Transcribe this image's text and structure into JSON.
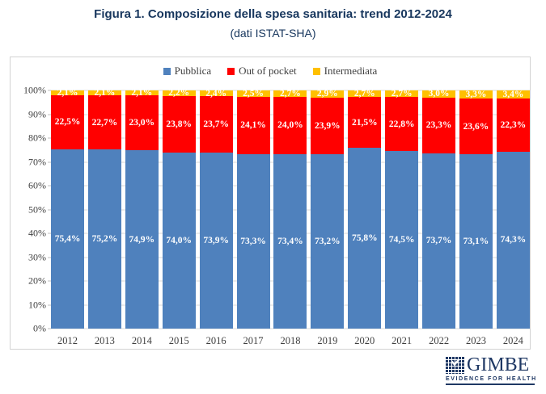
{
  "figure": {
    "title": "Figura 1. Composizione della spesa sanitaria: trend 2012-2024",
    "subtitle": "(dati ISTAT-SHA)"
  },
  "colors": {
    "pubblica": "#4F81BD",
    "out_of_pocket": "#FF0000",
    "intermediata": "#FFC000",
    "title_text": "#17365D",
    "axis_text": "#3F3F3F",
    "gridline": "#D9D9D9"
  },
  "chart_data": {
    "type": "bar",
    "stacked": true,
    "title": "Figura 1. Composizione della spesa sanitaria: trend 2012-2024",
    "subtitle": "(dati ISTAT-SHA)",
    "categories": [
      "2012",
      "2013",
      "2014",
      "2015",
      "2016",
      "2017",
      "2018",
      "2019",
      "2020",
      "2021",
      "2022",
      "2023",
      "2024"
    ],
    "series": [
      {
        "name": "Pubblica",
        "color": "#4F81BD",
        "values": [
          75.4,
          75.2,
          74.9,
          74.0,
          73.9,
          73.3,
          73.4,
          73.2,
          75.8,
          74.5,
          73.7,
          73.1,
          74.3
        ],
        "labels": [
          "75,4%",
          "75,2%",
          "74,9%",
          "74,0%",
          "73,9%",
          "73,3%",
          "73,4%",
          "73,2%",
          "75,8%",
          "74,5%",
          "73,7%",
          "73,1%",
          "74,3%"
        ]
      },
      {
        "name": "Out of pocket",
        "color": "#FF0000",
        "values": [
          22.5,
          22.7,
          23.0,
          23.8,
          23.7,
          24.1,
          24.0,
          23.9,
          21.5,
          22.8,
          23.3,
          23.6,
          22.3
        ],
        "labels": [
          "22,5%",
          "22,7%",
          "23,0%",
          "23,8%",
          "23,7%",
          "24,1%",
          "24,0%",
          "23,9%",
          "21,5%",
          "22,8%",
          "23,3%",
          "23,6%",
          "22,3%"
        ]
      },
      {
        "name": "Intermediata",
        "color": "#FFC000",
        "values": [
          2.1,
          2.1,
          2.1,
          2.2,
          2.4,
          2.5,
          2.7,
          2.9,
          2.7,
          2.7,
          3.0,
          3.3,
          3.4
        ],
        "labels": [
          "2,1%",
          "2,1%",
          "2,1%",
          "2,2%",
          "2,4%",
          "2,5%",
          "2,7%",
          "2,9%",
          "2,7%",
          "2,7%",
          "3,0%",
          "3,3%",
          "3,4%"
        ]
      }
    ],
    "ylim": [
      0,
      100
    ],
    "y_ticks": [
      "0%",
      "10%",
      "20%",
      "30%",
      "40%",
      "50%",
      "60%",
      "70%",
      "80%",
      "90%",
      "100%"
    ],
    "grid": true,
    "legend_position": "top",
    "xlabel": "",
    "ylabel": ""
  },
  "logo": {
    "word": "GIMBE",
    "tagline": "EVIDENCE FOR HEALTH"
  }
}
